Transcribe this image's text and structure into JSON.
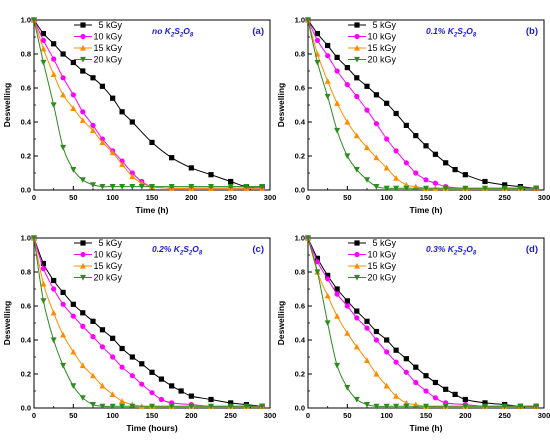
{
  "chart_data": [
    {
      "type": "line",
      "panel_label": "(a)",
      "annotation": {
        "main": "no K",
        "parts": [
          [
            "2",
            "sub"
          ],
          [
            "S",
            ""
          ],
          [
            "2",
            "sub"
          ],
          [
            "O",
            ""
          ],
          [
            "8",
            "sub"
          ]
        ]
      },
      "xlabel": "Time (h)",
      "ylabel": "Deswelling",
      "xlim": [
        0,
        300
      ],
      "ylim": [
        0,
        1.0
      ],
      "xticks": [
        "0",
        "50",
        "100",
        "150",
        "200",
        "250",
        "300"
      ],
      "yticks": [
        "0.0",
        "0.2",
        "0.4",
        "0.6",
        "0.8",
        "1.0"
      ],
      "series": [
        {
          "name": "5 kGy",
          "x": [
            0,
            12,
            25,
            37,
            50,
            62,
            75,
            87,
            100,
            112,
            125,
            150,
            175,
            200,
            225,
            250,
            270,
            290
          ],
          "y": [
            1.0,
            0.92,
            0.86,
            0.8,
            0.75,
            0.7,
            0.66,
            0.61,
            0.54,
            0.46,
            0.4,
            0.28,
            0.19,
            0.13,
            0.09,
            0.05,
            0.02,
            0.02
          ]
        },
        {
          "name": "10 kGy",
          "x": [
            0,
            12,
            25,
            37,
            50,
            62,
            75,
            87,
            100,
            112,
            125,
            137,
            150,
            175,
            200,
            225,
            250,
            270,
            290
          ],
          "y": [
            1.0,
            0.88,
            0.77,
            0.66,
            0.56,
            0.46,
            0.38,
            0.3,
            0.23,
            0.17,
            0.1,
            0.05,
            0.02,
            0.01,
            0.01,
            0.01,
            0.01,
            0.01,
            0.01
          ]
        },
        {
          "name": "15 kGy",
          "x": [
            0,
            12,
            25,
            37,
            50,
            62,
            75,
            87,
            100,
            112,
            125,
            137,
            150,
            175,
            200,
            225,
            250,
            270,
            290
          ],
          "y": [
            1.0,
            0.83,
            0.68,
            0.56,
            0.48,
            0.41,
            0.35,
            0.28,
            0.22,
            0.15,
            0.08,
            0.04,
            0.02,
            0.01,
            0.01,
            0.01,
            0.01,
            0.01,
            0.01
          ]
        },
        {
          "name": "20 kGy",
          "x": [
            0,
            12,
            25,
            37,
            50,
            62,
            75,
            87,
            100,
            112,
            125,
            137,
            150,
            175,
            200,
            225,
            250,
            270,
            290
          ],
          "y": [
            1.0,
            0.75,
            0.5,
            0.25,
            0.12,
            0.06,
            0.03,
            0.02,
            0.02,
            0.02,
            0.02,
            0.02,
            0.02,
            0.02,
            0.02,
            0.02,
            0.02,
            0.02,
            0.02
          ]
        }
      ]
    },
    {
      "type": "line",
      "panel_label": "(b)",
      "annotation": {
        "main": "0.1% K",
        "parts": [
          [
            "2",
            "sub"
          ],
          [
            "S",
            ""
          ],
          [
            "2",
            "sub"
          ],
          [
            "O",
            ""
          ],
          [
            "8",
            "sub"
          ]
        ]
      },
      "xlabel": "Time (h)",
      "ylabel": "Deswelling",
      "xlim": [
        0,
        300
      ],
      "ylim": [
        0,
        1.0
      ],
      "xticks": [
        "0",
        "50",
        "100",
        "150",
        "200",
        "250",
        "300"
      ],
      "yticks": [
        "0.0",
        "0.2",
        "0.4",
        "0.6",
        "0.8",
        "1.0"
      ],
      "series": [
        {
          "name": "5 kGy",
          "x": [
            0,
            12,
            25,
            37,
            50,
            62,
            75,
            87,
            100,
            112,
            125,
            137,
            150,
            162,
            175,
            187,
            200,
            225,
            250,
            270,
            290
          ],
          "y": [
            1.0,
            0.92,
            0.85,
            0.78,
            0.72,
            0.66,
            0.61,
            0.56,
            0.51,
            0.45,
            0.38,
            0.32,
            0.26,
            0.21,
            0.16,
            0.12,
            0.09,
            0.05,
            0.03,
            0.02,
            0.01
          ]
        },
        {
          "name": "10 kGy",
          "x": [
            0,
            12,
            25,
            37,
            50,
            62,
            75,
            87,
            100,
            112,
            125,
            137,
            150,
            162,
            175,
            200,
            225,
            250,
            270,
            290
          ],
          "y": [
            1.0,
            0.88,
            0.79,
            0.7,
            0.62,
            0.55,
            0.47,
            0.39,
            0.3,
            0.23,
            0.16,
            0.1,
            0.06,
            0.04,
            0.02,
            0.01,
            0.01,
            0.01,
            0.01,
            0.01
          ]
        },
        {
          "name": "15 kGy",
          "x": [
            0,
            12,
            25,
            37,
            50,
            62,
            75,
            87,
            100,
            112,
            125,
            137,
            150,
            162,
            175,
            200,
            225,
            250,
            270,
            290
          ],
          "y": [
            1.0,
            0.8,
            0.64,
            0.51,
            0.4,
            0.32,
            0.25,
            0.19,
            0.13,
            0.07,
            0.03,
            0.02,
            0.01,
            0.01,
            0.01,
            0.01,
            0.01,
            0.01,
            0.01,
            0.01
          ]
        },
        {
          "name": "20 kGy",
          "x": [
            0,
            12,
            25,
            37,
            50,
            62,
            75,
            87,
            100,
            112,
            125,
            150,
            175,
            200,
            225,
            250,
            270,
            290
          ],
          "y": [
            1.0,
            0.75,
            0.55,
            0.35,
            0.2,
            0.12,
            0.06,
            0.02,
            0.01,
            0.01,
            0.01,
            0.01,
            0.01,
            0.01,
            0.01,
            0.01,
            0.01,
            0.01
          ]
        }
      ]
    },
    {
      "type": "line",
      "panel_label": "(c)",
      "annotation": {
        "main": "0.2% K",
        "parts": [
          [
            "2",
            "sub"
          ],
          [
            "S",
            ""
          ],
          [
            "2",
            "sub"
          ],
          [
            "O",
            ""
          ],
          [
            "8",
            "sub"
          ]
        ]
      },
      "xlabel": "Time (hours)",
      "ylabel": "Deswelling",
      "xlim": [
        0,
        300
      ],
      "ylim": [
        0,
        1.0
      ],
      "xticks": [
        "0",
        "50",
        "100",
        "150",
        "200",
        "250",
        "300"
      ],
      "yticks": [
        "0.0",
        "0.2",
        "0.4",
        "0.6",
        "0.8",
        "1.0"
      ],
      "series": [
        {
          "name": "5 kGy",
          "x": [
            0,
            12,
            25,
            37,
            50,
            62,
            75,
            87,
            100,
            112,
            125,
            137,
            150,
            162,
            175,
            187,
            200,
            225,
            250,
            270,
            290
          ],
          "y": [
            1.0,
            0.85,
            0.75,
            0.68,
            0.61,
            0.56,
            0.51,
            0.46,
            0.41,
            0.35,
            0.3,
            0.26,
            0.21,
            0.17,
            0.13,
            0.1,
            0.07,
            0.05,
            0.03,
            0.02,
            0.01
          ]
        },
        {
          "name": "10 kGy",
          "x": [
            0,
            12,
            25,
            37,
            50,
            62,
            75,
            87,
            100,
            112,
            125,
            137,
            150,
            162,
            175,
            200,
            225,
            250,
            270,
            290
          ],
          "y": [
            1.0,
            0.82,
            0.7,
            0.61,
            0.54,
            0.48,
            0.42,
            0.36,
            0.3,
            0.24,
            0.19,
            0.14,
            0.09,
            0.05,
            0.03,
            0.02,
            0.01,
            0.01,
            0.01,
            0.01
          ]
        },
        {
          "name": "15 kGy",
          "x": [
            0,
            12,
            25,
            37,
            50,
            62,
            75,
            87,
            100,
            112,
            125,
            137,
            150,
            175,
            200,
            225,
            250,
            270,
            290
          ],
          "y": [
            1.0,
            0.73,
            0.56,
            0.43,
            0.33,
            0.25,
            0.19,
            0.13,
            0.08,
            0.04,
            0.02,
            0.01,
            0.01,
            0.01,
            0.01,
            0.01,
            0.01,
            0.01,
            0.01
          ]
        },
        {
          "name": "20 kGy",
          "x": [
            0,
            12,
            25,
            37,
            50,
            62,
            75,
            87,
            100,
            112,
            125,
            150,
            175,
            200,
            225,
            250,
            270,
            290
          ],
          "y": [
            1.0,
            0.63,
            0.4,
            0.25,
            0.13,
            0.06,
            0.02,
            0.01,
            0.01,
            0.01,
            0.01,
            0.01,
            0.01,
            0.01,
            0.01,
            0.01,
            0.01,
            0.01
          ]
        }
      ]
    },
    {
      "type": "line",
      "panel_label": "(d)",
      "annotation": {
        "main": "0.3% K",
        "parts": [
          [
            "2",
            "sub"
          ],
          [
            "S",
            ""
          ],
          [
            "2",
            "sub"
          ],
          [
            "O",
            ""
          ],
          [
            "8",
            "sub"
          ]
        ]
      },
      "xlabel": "Time (h)",
      "ylabel": "Deswelling",
      "xlim": [
        0,
        300
      ],
      "ylim": [
        0,
        1.0
      ],
      "xticks": [
        "0",
        "50",
        "100",
        "150",
        "200",
        "250",
        "300"
      ],
      "yticks": [
        "0.0",
        "0.2",
        "0.4",
        "0.6",
        "0.8",
        "1.0"
      ],
      "series": [
        {
          "name": "5 kGy",
          "x": [
            0,
            12,
            25,
            37,
            50,
            62,
            75,
            87,
            100,
            112,
            125,
            137,
            150,
            162,
            175,
            187,
            200,
            225,
            250,
            270,
            290
          ],
          "y": [
            1.0,
            0.88,
            0.78,
            0.7,
            0.63,
            0.57,
            0.51,
            0.45,
            0.4,
            0.34,
            0.29,
            0.24,
            0.19,
            0.15,
            0.11,
            0.08,
            0.05,
            0.03,
            0.02,
            0.01,
            0.01
          ]
        },
        {
          "name": "10 kGy",
          "x": [
            0,
            12,
            25,
            37,
            50,
            62,
            75,
            87,
            100,
            112,
            125,
            137,
            150,
            162,
            175,
            200,
            225,
            250,
            270,
            290
          ],
          "y": [
            1.0,
            0.86,
            0.76,
            0.67,
            0.6,
            0.53,
            0.47,
            0.4,
            0.33,
            0.27,
            0.21,
            0.15,
            0.1,
            0.06,
            0.03,
            0.02,
            0.01,
            0.01,
            0.01,
            0.01
          ]
        },
        {
          "name": "15 kGy",
          "x": [
            0,
            12,
            25,
            37,
            50,
            62,
            75,
            87,
            100,
            112,
            125,
            137,
            150,
            175,
            200,
            225,
            250,
            270,
            290
          ],
          "y": [
            1.0,
            0.8,
            0.66,
            0.54,
            0.44,
            0.36,
            0.28,
            0.2,
            0.13,
            0.07,
            0.03,
            0.02,
            0.01,
            0.01,
            0.01,
            0.01,
            0.01,
            0.01,
            0.01
          ]
        },
        {
          "name": "20 kGy",
          "x": [
            0,
            12,
            25,
            37,
            50,
            62,
            75,
            87,
            100,
            112,
            125,
            150,
            175,
            200,
            225,
            250,
            270,
            290
          ],
          "y": [
            1.0,
            0.8,
            0.5,
            0.25,
            0.12,
            0.05,
            0.02,
            0.01,
            0.01,
            0.01,
            0.01,
            0.01,
            0.01,
            0.01,
            0.01,
            0.01,
            0.01,
            0.01
          ]
        }
      ]
    }
  ],
  "styles": {
    "colors": [
      "#000000",
      "#ff00ff",
      "#ff8c00",
      "#2e8b1f"
    ],
    "markers": [
      "square",
      "circle",
      "triangle-up",
      "triangle-down"
    ],
    "annotation_color": "#1a1ad6"
  }
}
